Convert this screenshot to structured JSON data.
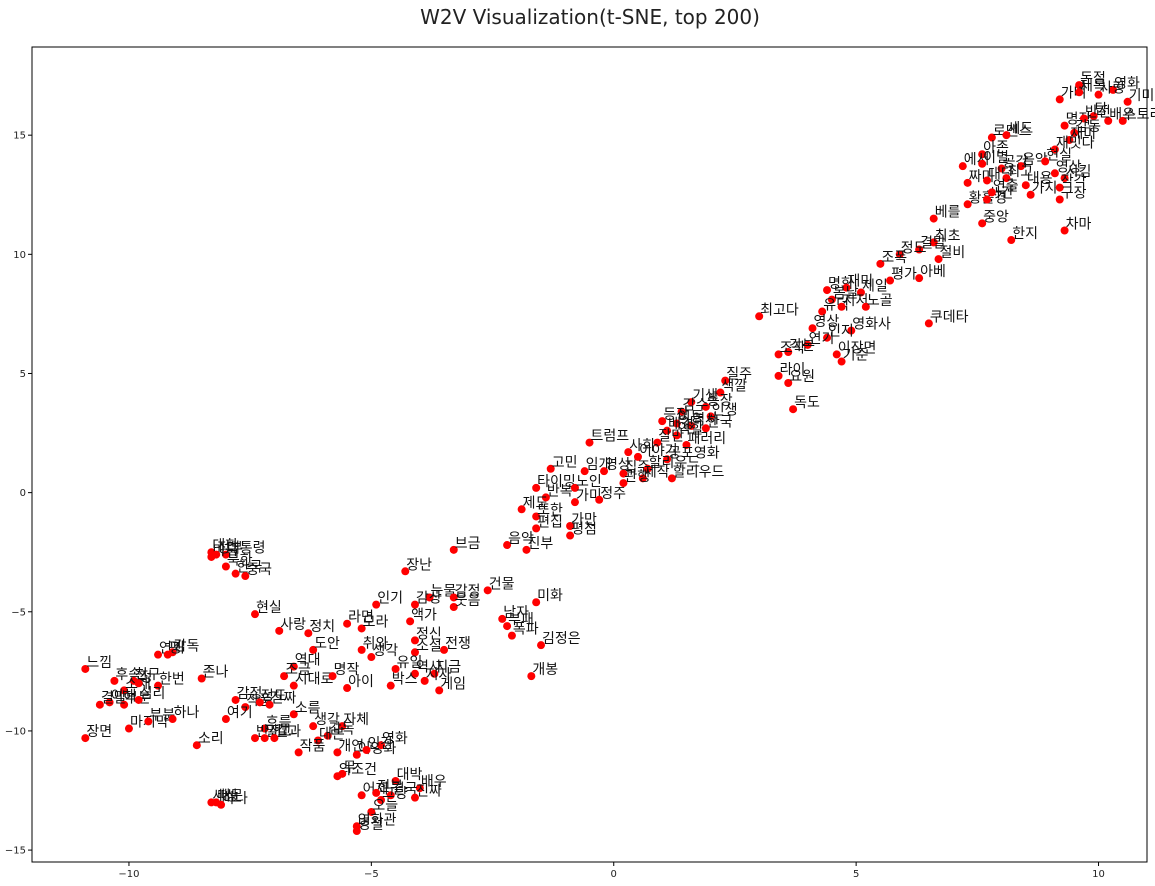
{
  "chart_data": {
    "type": "scatter",
    "title": "W2V Visualization(t-SNE, top 200)",
    "xlabel": "",
    "ylabel": "",
    "xlim": [
      -12.0,
      11.0
    ],
    "ylim": [
      -15.5,
      18.7
    ],
    "x_ticks": [
      -10,
      -5,
      0,
      5,
      10
    ],
    "y_ticks": [
      -15,
      -10,
      -5,
      0,
      5,
      10,
      15
    ],
    "x_tick_labels": [
      "−10",
      "−5",
      "0",
      "5",
      "10"
    ],
    "y_tick_labels": [
      "−15",
      "−10",
      "−5",
      "0",
      "5",
      "10",
      "15"
    ],
    "grid": false,
    "marker_color": "#ff0000",
    "points": [
      {
        "label": "돈절",
        "x": 9.6,
        "y": 17.1
      },
      {
        "label": "가벼",
        "x": 9.2,
        "y": 16.5
      },
      {
        "label": "제목",
        "x": 9.6,
        "y": 16.8
      },
      {
        "label": "영화",
        "x": 10.3,
        "y": 16.9
      },
      {
        "label": "기미",
        "x": 10.6,
        "y": 16.4
      },
      {
        "label": "사랑",
        "x": 10.0,
        "y": 16.7
      },
      {
        "label": "탑",
        "x": 9.9,
        "y": 15.8
      },
      {
        "label": "명작",
        "x": 9.3,
        "y": 15.4
      },
      {
        "label": "배우",
        "x": 10.2,
        "y": 15.6
      },
      {
        "label": "반전",
        "x": 9.7,
        "y": 15.7
      },
      {
        "label": "스토리",
        "x": 10.5,
        "y": 15.6
      },
      {
        "label": "감동",
        "x": 9.5,
        "y": 15.1
      },
      {
        "label": "재미",
        "x": 9.4,
        "y": 14.8
      },
      {
        "label": "로맨스",
        "x": 7.8,
        "y": 14.9
      },
      {
        "label": "세드",
        "x": 8.1,
        "y": 15.0
      },
      {
        "label": "재밋다",
        "x": 9.1,
        "y": 14.4
      },
      {
        "label": "아존",
        "x": 7.6,
        "y": 14.2
      },
      {
        "label": "에서",
        "x": 7.2,
        "y": 13.7
      },
      {
        "label": "이별",
        "x": 7.6,
        "y": 13.8
      },
      {
        "label": "공감",
        "x": 8.0,
        "y": 13.6
      },
      {
        "label": "음악",
        "x": 8.4,
        "y": 13.7
      },
      {
        "label": "현실",
        "x": 8.9,
        "y": 13.9
      },
      {
        "label": "영상",
        "x": 9.1,
        "y": 13.4
      },
      {
        "label": "시킴",
        "x": 9.3,
        "y": 13.2
      },
      {
        "label": "짜미",
        "x": 7.3,
        "y": 13.0
      },
      {
        "label": "대단",
        "x": 7.7,
        "y": 13.1
      },
      {
        "label": "최고",
        "x": 8.1,
        "y": 13.2
      },
      {
        "label": "내용",
        "x": 8.5,
        "y": 12.9
      },
      {
        "label": "가지",
        "x": 8.6,
        "y": 12.5
      },
      {
        "label": "작각",
        "x": 9.2,
        "y": 12.8
      },
      {
        "label": "구장",
        "x": 9.2,
        "y": 12.3
      },
      {
        "label": "황홀경",
        "x": 7.3,
        "y": 12.1
      },
      {
        "label": "시간",
        "x": 7.7,
        "y": 12.3
      },
      {
        "label": "연출",
        "x": 7.8,
        "y": 12.6
      },
      {
        "label": "베를",
        "x": 6.6,
        "y": 11.5
      },
      {
        "label": "중앙",
        "x": 7.6,
        "y": 11.3
      },
      {
        "label": "한지",
        "x": 8.2,
        "y": 10.6
      },
      {
        "label": "차마",
        "x": 9.3,
        "y": 11.0
      },
      {
        "label": "최초",
        "x": 6.6,
        "y": 10.5
      },
      {
        "label": "결말",
        "x": 6.3,
        "y": 10.2
      },
      {
        "label": "정도",
        "x": 5.9,
        "y": 10.0
      },
      {
        "label": "절비",
        "x": 6.7,
        "y": 9.8
      },
      {
        "label": "조폭",
        "x": 5.5,
        "y": 9.6
      },
      {
        "label": "아베",
        "x": 6.3,
        "y": 9.0
      },
      {
        "label": "평가",
        "x": 5.7,
        "y": 8.9
      },
      {
        "label": "명화",
        "x": 4.4,
        "y": 8.5
      },
      {
        "label": "재미",
        "x": 4.8,
        "y": 8.6
      },
      {
        "label": "제일",
        "x": 5.1,
        "y": 8.4
      },
      {
        "label": "봄날",
        "x": 4.5,
        "y": 8.1
      },
      {
        "label": "유덕",
        "x": 4.3,
        "y": 7.6
      },
      {
        "label": "지저",
        "x": 4.7,
        "y": 7.8
      },
      {
        "label": "노골",
        "x": 5.2,
        "y": 7.8
      },
      {
        "label": "최고다",
        "x": 3.0,
        "y": 7.4
      },
      {
        "label": "쿠데타",
        "x": 6.5,
        "y": 7.1
      },
      {
        "label": "영상",
        "x": 4.1,
        "y": 6.9
      },
      {
        "label": "영화사",
        "x": 4.9,
        "y": 6.8
      },
      {
        "label": "인지",
        "x": 4.4,
        "y": 6.5
      },
      {
        "label": "연기",
        "x": 4.0,
        "y": 6.2
      },
      {
        "label": "각본",
        "x": 3.6,
        "y": 5.9
      },
      {
        "label": "조작",
        "x": 3.4,
        "y": 5.8
      },
      {
        "label": "이장면",
        "x": 4.6,
        "y": 5.8
      },
      {
        "label": "기준",
        "x": 4.7,
        "y": 5.5
      },
      {
        "label": "질주",
        "x": 2.3,
        "y": 4.7
      },
      {
        "label": "라이",
        "x": 3.4,
        "y": 4.9
      },
      {
        "label": "요원",
        "x": 3.6,
        "y": 4.6
      },
      {
        "label": "색깔",
        "x": 2.2,
        "y": 4.2
      },
      {
        "label": "기생",
        "x": 1.6,
        "y": 3.8
      },
      {
        "label": "통장",
        "x": 1.9,
        "y": 3.6
      },
      {
        "label": "감수",
        "x": 1.4,
        "y": 3.4
      },
      {
        "label": "인생",
        "x": 2.0,
        "y": 3.2
      },
      {
        "label": "독도",
        "x": 3.7,
        "y": 3.5
      },
      {
        "label": "등장",
        "x": 1.0,
        "y": 3.0
      },
      {
        "label": "이동",
        "x": 1.3,
        "y": 2.9
      },
      {
        "label": "역사",
        "x": 1.6,
        "y": 2.8
      },
      {
        "label": "한국",
        "x": 1.9,
        "y": 2.7
      },
      {
        "label": "배경",
        "x": 1.1,
        "y": 2.6
      },
      {
        "label": "역할",
        "x": 1.3,
        "y": 2.4
      },
      {
        "label": "트럼프",
        "x": -0.5,
        "y": 2.1
      },
      {
        "label": "패러리",
        "x": 1.5,
        "y": 2.0
      },
      {
        "label": "잘만",
        "x": 0.9,
        "y": 2.1
      },
      {
        "label": "사회",
        "x": 0.3,
        "y": 1.7
      },
      {
        "label": "이야기",
        "x": 0.5,
        "y": 1.5
      },
      {
        "label": "공포영화",
        "x": 1.1,
        "y": 1.4
      },
      {
        "label": "고민",
        "x": -1.3,
        "y": 1.0
      },
      {
        "label": "임개",
        "x": -0.6,
        "y": 0.9
      },
      {
        "label": "영상",
        "x": -0.2,
        "y": 0.9
      },
      {
        "label": "집주",
        "x": 0.2,
        "y": 0.8
      },
      {
        "label": "할리우드",
        "x": 0.7,
        "y": 1.0
      },
      {
        "label": "제작",
        "x": 0.6,
        "y": 0.6
      },
      {
        "label": "할리우드",
        "x": 1.2,
        "y": 0.6
      },
      {
        "label": "관행",
        "x": 0.2,
        "y": 0.4
      },
      {
        "label": "타이밍",
        "x": -1.6,
        "y": 0.2
      },
      {
        "label": "노인",
        "x": -0.8,
        "y": 0.2
      },
      {
        "label": "반복",
        "x": -1.4,
        "y": -0.2
      },
      {
        "label": "가미",
        "x": -0.8,
        "y": -0.4
      },
      {
        "label": "정주",
        "x": -0.3,
        "y": -0.3
      },
      {
        "label": "제도",
        "x": -1.9,
        "y": -0.7
      },
      {
        "label": "또한",
        "x": -1.6,
        "y": -1.0
      },
      {
        "label": "가만",
        "x": -0.9,
        "y": -1.4
      },
      {
        "label": "평점",
        "x": -0.9,
        "y": -1.8
      },
      {
        "label": "편집",
        "x": -1.6,
        "y": -1.5
      },
      {
        "label": "음악",
        "x": -2.2,
        "y": -2.2
      },
      {
        "label": "브금",
        "x": -3.3,
        "y": -2.4
      },
      {
        "label": "진부",
        "x": -1.8,
        "y": -2.4
      },
      {
        "label": "장난",
        "x": -4.3,
        "y": -3.3
      },
      {
        "label": "건물",
        "x": -2.6,
        "y": -4.1
      },
      {
        "label": "눈물",
        "x": -3.8,
        "y": -4.4
      },
      {
        "label": "감정",
        "x": -3.3,
        "y": -4.4
      },
      {
        "label": "인기",
        "x": -4.9,
        "y": -4.7
      },
      {
        "label": "감상",
        "x": -4.1,
        "y": -4.7
      },
      {
        "label": "웃음",
        "x": -3.3,
        "y": -4.8
      },
      {
        "label": "미화",
        "x": -1.6,
        "y": -4.6
      },
      {
        "label": "현실",
        "x": -7.4,
        "y": -5.1
      },
      {
        "label": "사랑",
        "x": -6.9,
        "y": -5.8
      },
      {
        "label": "정치",
        "x": -6.3,
        "y": -5.9
      },
      {
        "label": "라면",
        "x": -5.5,
        "y": -5.5
      },
      {
        "label": "액가",
        "x": -4.2,
        "y": -5.4
      },
      {
        "label": "남자",
        "x": -2.3,
        "y": -5.3
      },
      {
        "label": "부패",
        "x": -2.2,
        "y": -5.6
      },
      {
        "label": "폭파",
        "x": -2.1,
        "y": -6.0
      },
      {
        "label": "도안",
        "x": -6.2,
        "y": -6.6
      },
      {
        "label": "모라",
        "x": -5.2,
        "y": -5.7
      },
      {
        "label": "정신",
        "x": -4.1,
        "y": -6.2
      },
      {
        "label": "취와",
        "x": -5.2,
        "y": -6.6
      },
      {
        "label": "소설",
        "x": -4.1,
        "y": -6.7
      },
      {
        "label": "전쟁",
        "x": -3.5,
        "y": -6.6
      },
      {
        "label": "김정은",
        "x": -1.5,
        "y": -6.4
      },
      {
        "label": "생각",
        "x": -5.0,
        "y": -6.9
      },
      {
        "label": "역대",
        "x": -6.6,
        "y": -7.3
      },
      {
        "label": "조금",
        "x": -6.8,
        "y": -7.7
      },
      {
        "label": "시대로",
        "x": -6.6,
        "y": -8.1
      },
      {
        "label": "명작",
        "x": -5.8,
        "y": -7.7
      },
      {
        "label": "유일",
        "x": -4.5,
        "y": -7.4
      },
      {
        "label": "역사",
        "x": -4.1,
        "y": -7.6
      },
      {
        "label": "지금",
        "x": -3.7,
        "y": -7.6
      },
      {
        "label": "지자",
        "x": -3.9,
        "y": -7.9
      },
      {
        "label": "개봉",
        "x": -1.7,
        "y": -7.7
      },
      {
        "label": "아이",
        "x": -5.5,
        "y": -8.2
      },
      {
        "label": "박스",
        "x": -4.6,
        "y": -8.1
      },
      {
        "label": "게임",
        "x": -3.6,
        "y": -8.3
      },
      {
        "label": "느낌",
        "x": -10.9,
        "y": -7.4
      },
      {
        "label": "연기",
        "x": -9.4,
        "y": -6.8
      },
      {
        "label": "감독",
        "x": -9.1,
        "y": -6.7
      },
      {
        "label": "평",
        "x": -9.2,
        "y": -6.8
      },
      {
        "label": "존나",
        "x": -8.5,
        "y": -7.8
      },
      {
        "label": "후속",
        "x": -10.3,
        "y": -7.9
      },
      {
        "label": "친구",
        "x": -9.9,
        "y": -7.9
      },
      {
        "label": "소재",
        "x": -10.1,
        "y": -8.3
      },
      {
        "label": "한번",
        "x": -9.4,
        "y": -8.1
      },
      {
        "label": "정",
        "x": -9.8,
        "y": -8.0
      },
      {
        "label": "이해",
        "x": -10.4,
        "y": -8.8
      },
      {
        "label": "부분",
        "x": -10.1,
        "y": -8.9
      },
      {
        "label": "심리",
        "x": -9.8,
        "y": -8.7
      },
      {
        "label": "결말",
        "x": -10.6,
        "y": -8.9
      },
      {
        "label": "감정",
        "x": -7.8,
        "y": -8.7
      },
      {
        "label": "작품",
        "x": -7.6,
        "y": -9.0
      },
      {
        "label": "정도",
        "x": -7.3,
        "y": -8.8
      },
      {
        "label": "진짜",
        "x": -7.1,
        "y": -8.9
      },
      {
        "label": "여기",
        "x": -8.0,
        "y": -9.5
      },
      {
        "label": "소름",
        "x": -6.6,
        "y": -9.3
      },
      {
        "label": "마지막",
        "x": -10.0,
        "y": -9.9
      },
      {
        "label": "부분",
        "x": -9.6,
        "y": -9.6
      },
      {
        "label": "하나",
        "x": -9.1,
        "y": -9.5
      },
      {
        "label": "흐름",
        "x": -7.2,
        "y": -9.9
      },
      {
        "label": "반전",
        "x": -7.4,
        "y": -10.3
      },
      {
        "label": "말고",
        "x": -7.2,
        "y": -10.3
      },
      {
        "label": "결과",
        "x": -7.0,
        "y": -10.3
      },
      {
        "label": "소리",
        "x": -8.6,
        "y": -10.6
      },
      {
        "label": "장면",
        "x": -10.9,
        "y": -10.3
      },
      {
        "label": "생각",
        "x": -6.2,
        "y": -9.8
      },
      {
        "label": "자체",
        "x": -5.6,
        "y": -9.8
      },
      {
        "label": "감독",
        "x": -5.9,
        "y": -10.2
      },
      {
        "label": "대본",
        "x": -6.1,
        "y": -10.4
      },
      {
        "label": "작품",
        "x": -6.5,
        "y": -10.9
      },
      {
        "label": "개연",
        "x": -5.7,
        "y": -10.9
      },
      {
        "label": "이영화",
        "x": -5.3,
        "y": -11.0
      },
      {
        "label": "영화",
        "x": -4.8,
        "y": -10.6
      },
      {
        "label": "인간",
        "x": -5.1,
        "y": -10.8
      },
      {
        "label": "의조건",
        "x": -5.7,
        "y": -11.9
      },
      {
        "label": "무",
        "x": -5.6,
        "y": -11.8
      },
      {
        "label": "대박",
        "x": -4.5,
        "y": -12.1
      },
      {
        "label": "배우",
        "x": -4.0,
        "y": -12.4
      },
      {
        "label": "어제",
        "x": -5.2,
        "y": -12.7
      },
      {
        "label": "전부",
        "x": -4.9,
        "y": -12.6
      },
      {
        "label": "결국",
        "x": -4.6,
        "y": -12.7
      },
      {
        "label": "진짜",
        "x": -4.1,
        "y": -12.8
      },
      {
        "label": "그냥",
        "x": -4.8,
        "y": -12.9
      },
      {
        "label": "오늘",
        "x": -5.0,
        "y": -13.4
      },
      {
        "label": "영화관",
        "x": -5.3,
        "y": -14.0
      },
      {
        "label": "명절",
        "x": -5.3,
        "y": -14.2
      },
      {
        "label": "대한",
        "x": -8.3,
        "y": -2.5
      },
      {
        "label": "대통령",
        "x": -8.0,
        "y": -2.6
      },
      {
        "label": "미국",
        "x": -8.3,
        "y": -2.7
      },
      {
        "label": "정부",
        "x": -8.2,
        "y": -2.6
      },
      {
        "label": "한국",
        "x": -7.8,
        "y": -3.4
      },
      {
        "label": "북한",
        "x": -8.0,
        "y": -3.1
      },
      {
        "label": "중국",
        "x": -7.6,
        "y": -3.5
      },
      {
        "label": "세상",
        "x": -8.3,
        "y": -13.0
      },
      {
        "label": "때문",
        "x": -8.2,
        "y": -13.0
      },
      {
        "label": "하나",
        "x": -8.1,
        "y": -13.1
      }
    ]
  }
}
